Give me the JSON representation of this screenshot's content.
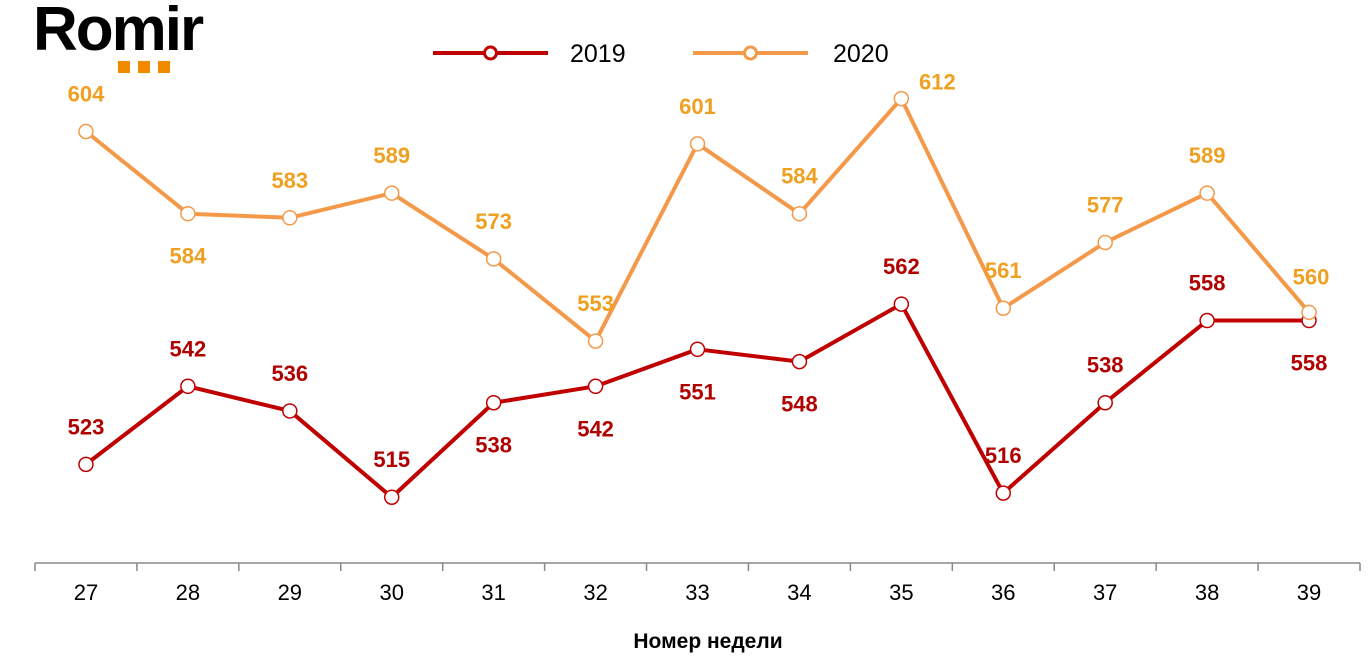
{
  "logo": {
    "text": "Romir",
    "accent_color": "#f28a00"
  },
  "chart_data": {
    "type": "line",
    "title": "",
    "xlabel": "Номер недели",
    "ylabel": "",
    "categories": [
      "27",
      "28",
      "29",
      "30",
      "31",
      "32",
      "33",
      "34",
      "35",
      "36",
      "37",
      "38",
      "39"
    ],
    "ylim": [
      499,
      636
    ],
    "grid": false,
    "legend": "top-center",
    "series": [
      {
        "name": "2019",
        "color": "#c00000",
        "label_color": "#b00000",
        "values": [
          523,
          542,
          536,
          515,
          538,
          542,
          551,
          548,
          562,
          516,
          538,
          558,
          558
        ]
      },
      {
        "name": "2020",
        "color": "#f4994a",
        "label_color": "#f0a020",
        "values": [
          604,
          584,
          583,
          589,
          573,
          553,
          601,
          584,
          612,
          561,
          577,
          589,
          560
        ]
      }
    ]
  }
}
